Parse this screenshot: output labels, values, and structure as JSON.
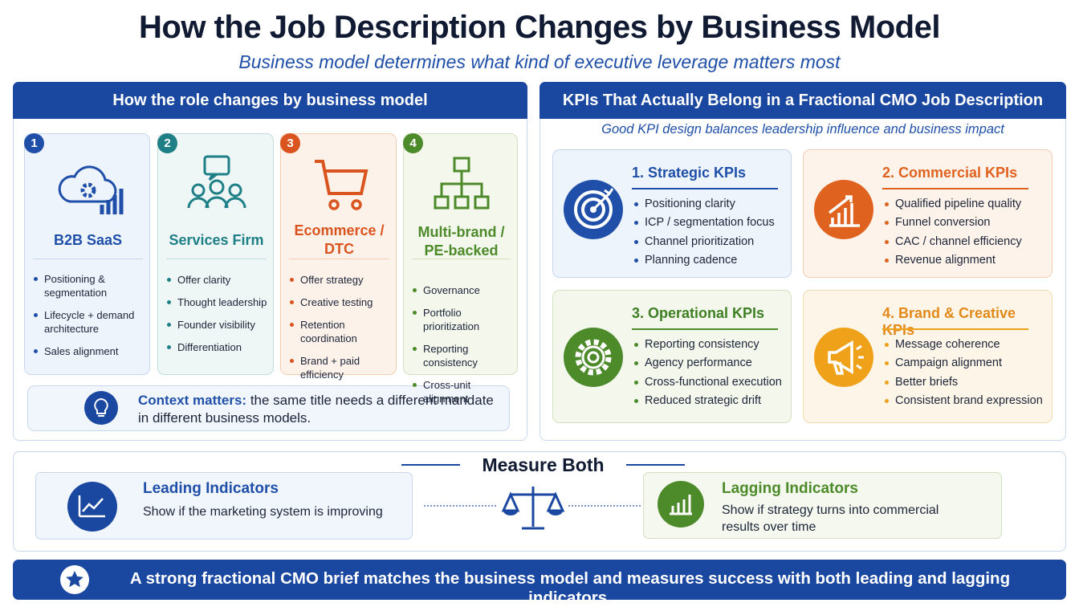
{
  "header": {
    "title": "How the Job Description Changes by Business Model",
    "subtitle": "Business model determines what kind of executive leverage matters most"
  },
  "left_panel": {
    "title": "How the role changes by business model",
    "models": [
      {
        "number": "1",
        "name": "B2B SaaS",
        "bullets": [
          "Positioning & segmentation",
          "Lifecycle + demand architecture",
          "Sales alignment"
        ]
      },
      {
        "number": "2",
        "name": "Services Firm",
        "bullets": [
          "Offer clarity",
          "Thought leadership",
          "Founder visibility",
          "Differentiation"
        ]
      },
      {
        "number": "3",
        "name": "Ecommerce / DTC",
        "bullets": [
          "Offer strategy",
          "Creative testing",
          "Retention coordination",
          "Brand + paid efficiency"
        ]
      },
      {
        "number": "4",
        "name": "Multi-brand / PE-backed",
        "bullets": [
          "Governance",
          "Portfolio prioritization",
          "Reporting consistency",
          "Cross-unit alignment"
        ]
      }
    ],
    "note": {
      "lead": "Context matters:",
      "text": "the same title needs a different mandate in different business models."
    }
  },
  "right_panel": {
    "title": "KPIs That Actually Belong in a Fractional CMO Job Description",
    "subtitle": "Good KPI design balances leadership influence and business impact",
    "groups": [
      {
        "title": "1. Strategic KPIs",
        "items": [
          "Positioning clarity",
          "ICP / segmentation focus",
          "Channel prioritization",
          "Planning cadence"
        ]
      },
      {
        "title": "2. Commercial KPIs",
        "items": [
          "Qualified pipeline quality",
          "Funnel conversion",
          "CAC / channel efficiency",
          "Revenue alignment"
        ]
      },
      {
        "title": "3. Operational KPIs",
        "items": [
          "Reporting consistency",
          "Agency performance",
          "Cross-functional execution",
          "Reduced strategic drift"
        ]
      },
      {
        "title": "4. Brand & Creative KPIs",
        "items": [
          "Message coherence",
          "Campaign alignment",
          "Better briefs",
          "Consistent brand expression"
        ]
      }
    ]
  },
  "measure": {
    "title": "Measure Both",
    "leading": {
      "title": "Leading Indicators",
      "text": "Show if the marketing system is improving"
    },
    "lagging": {
      "title": "Lagging Indicators",
      "text": "Show if strategy turns into commercial results over time"
    }
  },
  "footer": {
    "text": "A strong fractional CMO brief matches the business model and measures success with both leading and lagging indicators."
  }
}
